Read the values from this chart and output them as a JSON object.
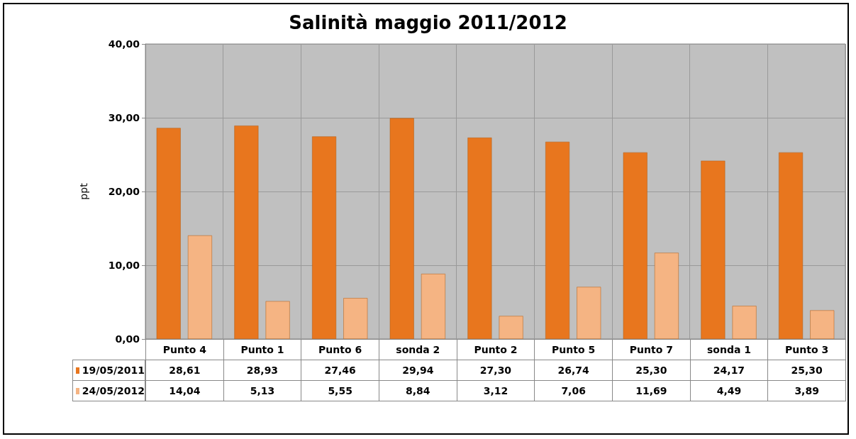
{
  "chart_data": {
    "type": "bar",
    "title": "Salinità maggio 2011/2012",
    "ylabel": "ppt",
    "categories": [
      "Punto 4",
      "Punto 1",
      "Punto 6",
      "sonda 2",
      "Punto 2",
      "Punto 5",
      "Punto 7",
      "sonda 1",
      "Punto 3"
    ],
    "series": [
      {
        "name": "19/05/2011",
        "color": "#e8761e",
        "values": [
          28.61,
          28.93,
          27.46,
          29.94,
          27.3,
          26.74,
          25.3,
          24.17,
          25.3
        ],
        "value_labels": [
          "28,61",
          "28,93",
          "27,46",
          "29,94",
          "27,30",
          "26,74",
          "25,30",
          "24,17",
          "25,30"
        ]
      },
      {
        "name": "24/05/2012",
        "color": "#f5b483",
        "values": [
          14.04,
          5.13,
          5.55,
          8.84,
          3.12,
          7.06,
          11.69,
          4.49,
          3.89
        ],
        "value_labels": [
          "14,04",
          "5,13",
          "5,55",
          "8,84",
          "3,12",
          "7,06",
          "11,69",
          "4,49",
          "3,89"
        ]
      }
    ],
    "ylim": [
      0,
      40
    ],
    "yticks": [
      {
        "value": 0,
        "label": "0,00"
      },
      {
        "value": 10,
        "label": "10,00"
      },
      {
        "value": 20,
        "label": "20,00"
      },
      {
        "value": 30,
        "label": "30,00"
      },
      {
        "value": 40,
        "label": "40,00"
      }
    ],
    "grid": true,
    "legend": "bottom left"
  }
}
